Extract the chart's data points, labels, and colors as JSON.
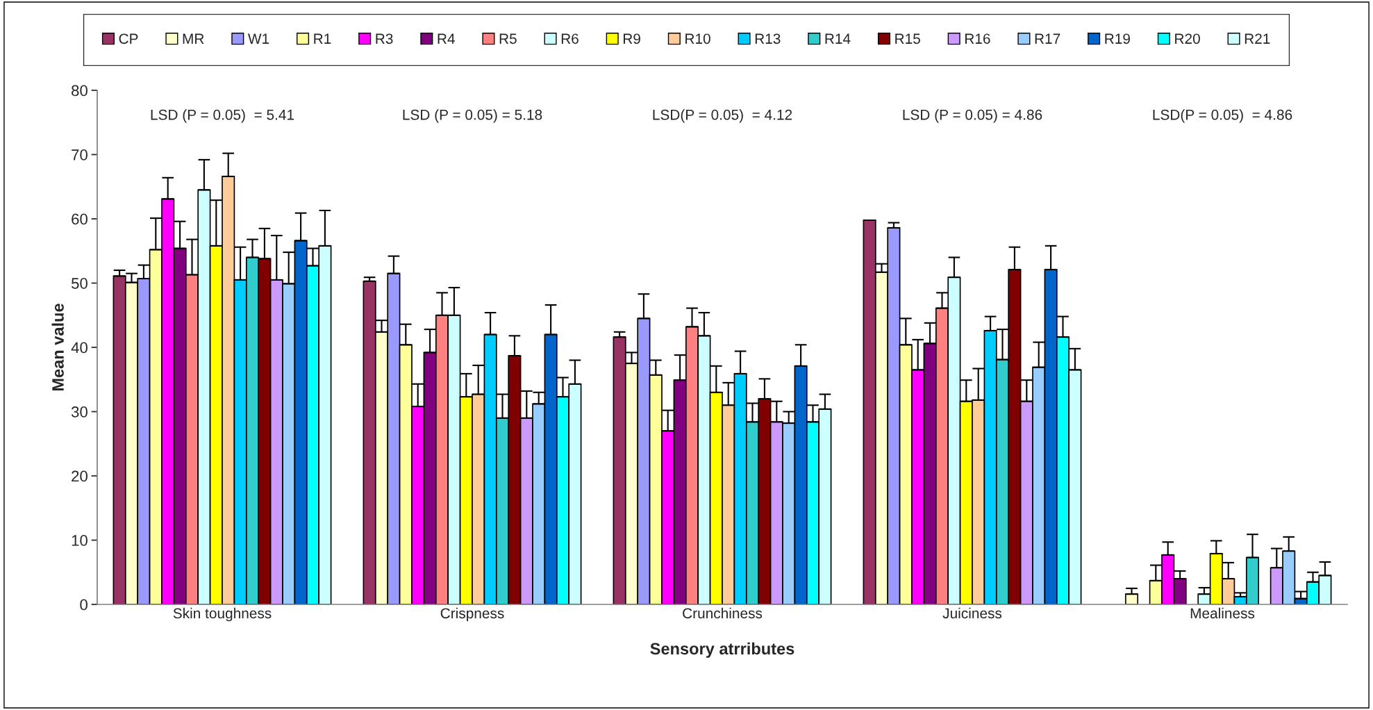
{
  "chart_data": {
    "type": "bar",
    "xlabel": "Sensory atrributes",
    "ylabel": "Mean value",
    "categories": [
      "Skin toughness",
      "Crispness",
      "Crunchiness",
      "Juiciness",
      "Mealiness"
    ],
    "ylim": [
      0,
      80
    ],
    "yticks": [
      0,
      10,
      20,
      30,
      40,
      50,
      60,
      70,
      80
    ],
    "grid": false,
    "legend": "top",
    "annotations": [
      "LSD (P = 0.05)  = 5.41",
      "LSD (P = 0.05) = 5.18",
      "LSD(P = 0.05)  = 4.12",
      "LSD (P = 0.05) = 4.86",
      "LSD(P = 0.05)  = 4.86"
    ],
    "series": [
      {
        "name": "CP",
        "color": "#993366",
        "values": [
          51.1,
          50.3,
          41.6,
          59.8,
          0
        ],
        "errors": [
          [
            51.1,
            52.0
          ],
          [
            50.3,
            50.9
          ],
          [
            41.6,
            42.4
          ],
          null,
          null
        ]
      },
      {
        "name": "MR",
        "color": "#ffffcc",
        "values": [
          50.1,
          42.4,
          37.5,
          51.7,
          1.6
        ],
        "errors": [
          [
            50.1,
            51.5
          ],
          [
            42.4,
            44.2
          ],
          [
            37.5,
            39.2
          ],
          [
            51.7,
            53.0
          ],
          [
            1.6,
            2.5
          ]
        ]
      },
      {
        "name": "W1",
        "color": "#9999ff",
        "values": [
          50.7,
          51.5,
          44.5,
          58.6,
          0
        ],
        "errors": [
          [
            50.7,
            52.8
          ],
          [
            51.5,
            54.2
          ],
          [
            44.5,
            48.3
          ],
          [
            58.6,
            59.4
          ],
          null
        ]
      },
      {
        "name": "R1",
        "color": "#ffff99",
        "values": [
          55.2,
          40.4,
          35.7,
          40.4,
          3.7
        ],
        "errors": [
          [
            55.2,
            60.1
          ],
          [
            40.4,
            43.6
          ],
          [
            35.7,
            38.0
          ],
          [
            40.4,
            44.5
          ],
          [
            3.7,
            6.1
          ]
        ]
      },
      {
        "name": "R3",
        "color": "#ff00ff",
        "values": [
          63.1,
          30.8,
          27.0,
          36.5,
          7.7
        ],
        "errors": [
          [
            63.1,
            66.4
          ],
          [
            30.8,
            34.3
          ],
          [
            27.0,
            30.2
          ],
          [
            36.5,
            41.2
          ],
          [
            7.7,
            9.7
          ]
        ]
      },
      {
        "name": "R4",
        "color": "#800080",
        "values": [
          55.4,
          39.2,
          34.9,
          40.6,
          4.0
        ],
        "errors": [
          [
            55.4,
            59.6
          ],
          [
            39.2,
            42.8
          ],
          [
            34.9,
            38.8
          ],
          [
            40.6,
            43.8
          ],
          [
            4.0,
            5.2
          ]
        ]
      },
      {
        "name": "R5",
        "color": "#ff8080",
        "values": [
          51.3,
          45.0,
          43.2,
          46.1,
          0
        ],
        "errors": [
          [
            51.3,
            56.8
          ],
          [
            45.0,
            48.5
          ],
          [
            43.2,
            46.1
          ],
          [
            46.1,
            48.5
          ],
          null
        ]
      },
      {
        "name": "R6",
        "color": "#ccffff",
        "values": [
          64.5,
          45.0,
          41.8,
          50.9,
          1.6
        ],
        "errors": [
          [
            64.5,
            69.2
          ],
          [
            45.0,
            49.3
          ],
          [
            41.8,
            45.4
          ],
          [
            50.9,
            54.0
          ],
          [
            1.6,
            2.6
          ]
        ]
      },
      {
        "name": "R9",
        "color": "#ffff00",
        "values": [
          55.8,
          32.3,
          33.0,
          31.6,
          7.9
        ],
        "errors": [
          [
            55.8,
            62.9
          ],
          [
            32.3,
            35.9
          ],
          [
            33.0,
            37.1
          ],
          [
            31.6,
            34.9
          ],
          [
            7.9,
            9.9
          ]
        ]
      },
      {
        "name": "R10",
        "color": "#ffcc99",
        "values": [
          66.6,
          32.7,
          31.0,
          31.8,
          4.0
        ],
        "errors": [
          [
            66.6,
            70.2
          ],
          [
            32.7,
            37.2
          ],
          [
            31.0,
            34.5
          ],
          [
            31.8,
            36.7
          ],
          [
            4.0,
            6.5
          ]
        ]
      },
      {
        "name": "R13",
        "color": "#00ccff",
        "values": [
          50.5,
          42.0,
          35.9,
          42.6,
          1.2
        ],
        "errors": [
          [
            50.5,
            55.6
          ],
          [
            42.0,
            45.4
          ],
          [
            35.9,
            39.4
          ],
          [
            42.6,
            44.8
          ],
          [
            1.2,
            1.8
          ]
        ]
      },
      {
        "name": "R14",
        "color": "#33cccc",
        "values": [
          54.0,
          29.0,
          28.4,
          38.1,
          7.3
        ],
        "errors": [
          [
            54.0,
            56.8
          ],
          [
            29.0,
            32.7
          ],
          [
            28.4,
            31.3
          ],
          [
            38.1,
            42.8
          ],
          [
            7.3,
            10.9
          ]
        ]
      },
      {
        "name": "R15",
        "color": "#800000",
        "values": [
          53.8,
          38.7,
          32.0,
          52.1,
          0
        ],
        "errors": [
          [
            53.8,
            58.5
          ],
          [
            38.7,
            41.8
          ],
          [
            32.0,
            35.1
          ],
          [
            52.1,
            55.6
          ],
          null
        ]
      },
      {
        "name": "R16",
        "color": "#cc99ff",
        "values": [
          50.5,
          29.0,
          28.4,
          31.6,
          5.7
        ],
        "errors": [
          [
            50.5,
            57.4
          ],
          [
            29.0,
            33.2
          ],
          [
            28.4,
            31.6
          ],
          [
            31.6,
            34.9
          ],
          [
            5.7,
            8.7
          ]
        ]
      },
      {
        "name": "R17",
        "color": "#99ccff",
        "values": [
          49.9,
          31.2,
          28.2,
          36.9,
          8.3
        ],
        "errors": [
          [
            49.9,
            54.8
          ],
          [
            31.2,
            33.0
          ],
          [
            28.2,
            30.0
          ],
          [
            36.9,
            40.8
          ],
          [
            8.3,
            10.5
          ]
        ]
      },
      {
        "name": "R19",
        "color": "#0066cc",
        "values": [
          56.6,
          42.0,
          37.1,
          52.1,
          0.9
        ],
        "errors": [
          [
            56.6,
            60.9
          ],
          [
            42.0,
            46.6
          ],
          [
            37.1,
            40.4
          ],
          [
            52.1,
            55.8
          ],
          [
            0.9,
            2.0
          ]
        ]
      },
      {
        "name": "R20",
        "color": "#00ffff",
        "values": [
          52.7,
          32.3,
          28.4,
          41.6,
          3.5
        ],
        "errors": [
          [
            52.7,
            55.4
          ],
          [
            32.3,
            35.3
          ],
          [
            28.4,
            31.0
          ],
          [
            41.6,
            44.8
          ],
          [
            3.5,
            5.0
          ]
        ]
      },
      {
        "name": "R21",
        "color": "#ccffff",
        "values": [
          55.8,
          34.3,
          30.4,
          36.5,
          4.5
        ],
        "errors": [
          [
            55.8,
            61.3
          ],
          [
            34.3,
            38.0
          ],
          [
            30.4,
            32.7
          ],
          [
            36.5,
            39.8
          ],
          [
            4.5,
            6.6
          ]
        ]
      }
    ]
  }
}
